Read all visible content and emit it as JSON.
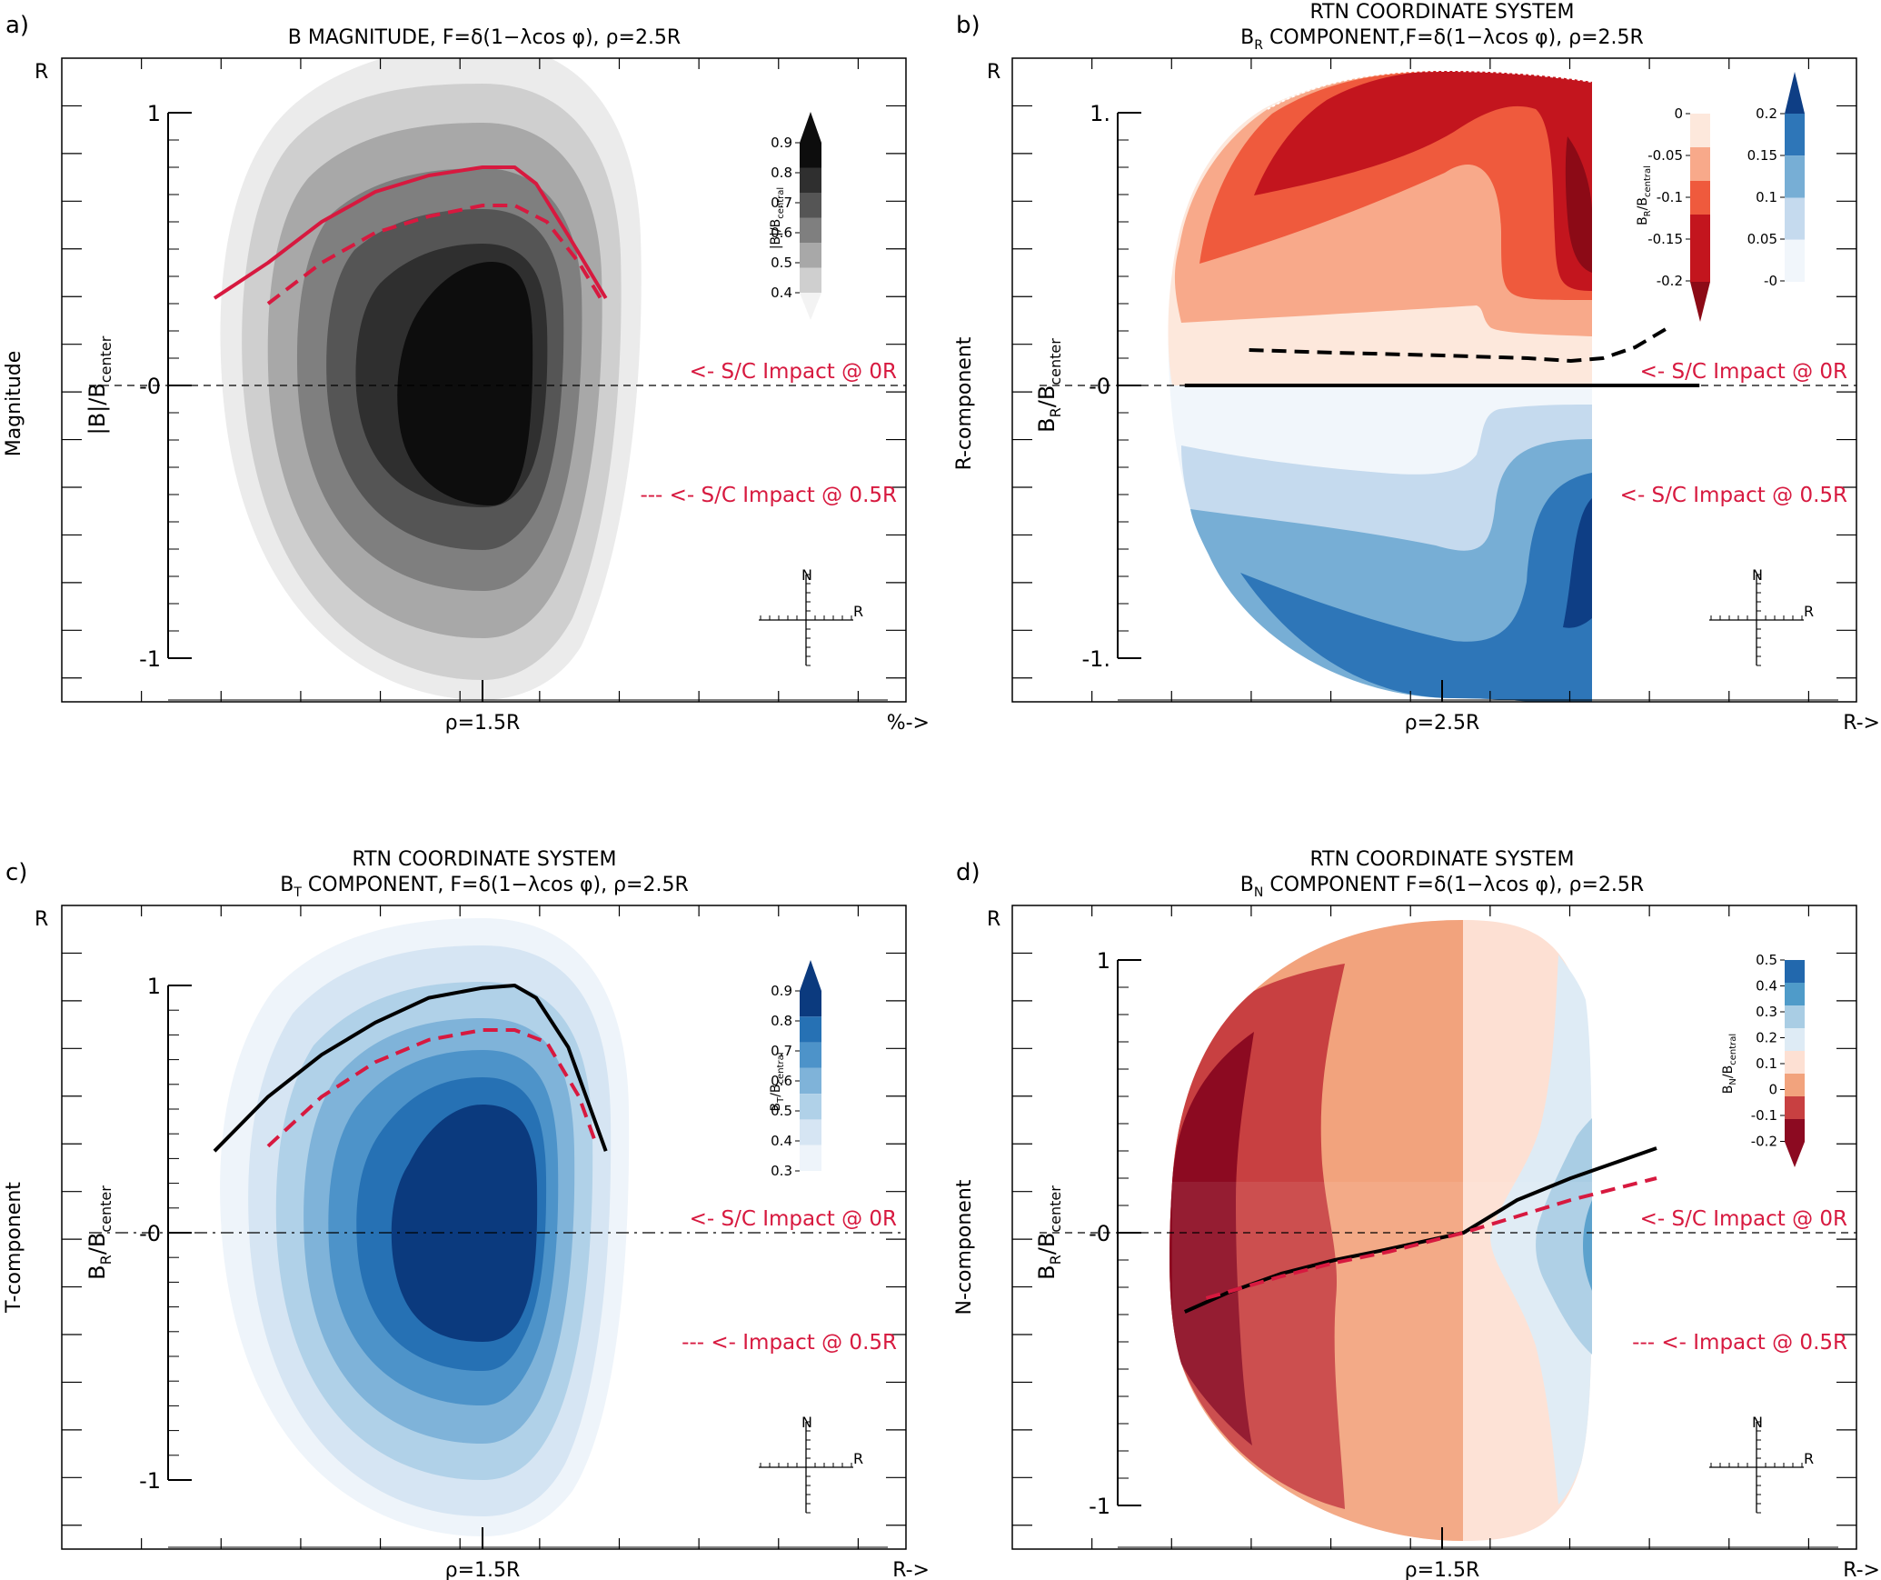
{
  "colors": {
    "accent_red": "#d7193f",
    "black": "#000000",
    "greys": [
      "#ebebeb",
      "#cfcfcf",
      "#a8a8a8",
      "#7f7f7f",
      "#555555",
      "#2f2f2f",
      "#0d0d0d"
    ],
    "blues": [
      "#eef4fa",
      "#d6e5f3",
      "#b0d1e8",
      "#7fb3d9",
      "#4d93c9",
      "#2671b4",
      "#0b3a7e"
    ],
    "reds_br": [
      "#fde8dc",
      "#f8a98a",
      "#ef5a3d",
      "#c3151e",
      "#8c0a16"
    ],
    "blues_br": [
      "#f1f6fb",
      "#c5daee",
      "#77aed5",
      "#2e76b8",
      "#0e3e85"
    ],
    "bn_scale": [
      "#8c0a21",
      "#c84041",
      "#f2a37d",
      "#fde0d3",
      "#deebf5",
      "#a9cde4",
      "#4f9bc9",
      "#2268ad",
      "#0b3e7d"
    ]
  },
  "chart_data": [
    {
      "panel": "a)",
      "type": "heatmap",
      "title": "B MAGNITUDE, F=δ(1−λcos φ), ρ=2.5R",
      "corner_label": "R",
      "outer_ylabel": "Magnitude",
      "ylabel": "|B|/B",
      "ylabel_sub": "center",
      "yticks": [
        "1",
        "-0",
        "-1"
      ],
      "ylim": [
        -1.15,
        1.15
      ],
      "xlabel_center": "ρ=1.5R",
      "xlabel_right": "%->",
      "colorbar": {
        "label": "|B|/B",
        "label_sub": "central",
        "ticks": [
          "0.9",
          "0.8",
          "0.7",
          "0.6",
          "0.5",
          "0.4"
        ],
        "levels": [
          0.4,
          0.5,
          0.6,
          0.7,
          0.8,
          0.9
        ]
      },
      "annotations": [
        "<- S/C Impact @ 0R",
        "--- <- S/C Impact @ 0.5R"
      ],
      "compass": {
        "north": "N",
        "east": "R"
      },
      "series": [
        {
          "style": "solid",
          "color": "#d7193f",
          "x": [
            -2.5,
            -2.0,
            -1.5,
            -1.0,
            -0.5,
            0,
            0.3,
            0.5,
            0.8,
            1.15
          ],
          "y": [
            0.32,
            0.45,
            0.6,
            0.71,
            0.77,
            0.8,
            0.8,
            0.74,
            0.55,
            0.32
          ]
        },
        {
          "style": "dashed",
          "color": "#d7193f",
          "x": [
            -2.0,
            -1.5,
            -1.0,
            -0.5,
            0,
            0.3,
            0.6,
            0.9,
            1.1
          ],
          "y": [
            0.3,
            0.45,
            0.56,
            0.62,
            0.66,
            0.66,
            0.6,
            0.45,
            0.32
          ]
        }
      ]
    },
    {
      "panel": "b)",
      "type": "heatmap",
      "title": "RTN COORDINATE SYSTEM",
      "subtitle_pre": "B",
      "subtitle_sub": "R",
      "subtitle_post": " COMPONENT,F=δ(1−λcos φ), ρ=2.5R",
      "corner_label": "R",
      "outer_ylabel": "R-component",
      "ylabel": "B",
      "ylabel_sub": "R",
      "ylabel_post": "/B",
      "ylabel_sub2": "center",
      "yticks": [
        "1.",
        "-0",
        "-1."
      ],
      "ylim": [
        -1.15,
        1.15
      ],
      "xlabel_center": "ρ=2.5R",
      "xlabel_right": "R->",
      "colorbar_neg": {
        "ticks": [
          "0",
          "-0.05",
          "-0.1",
          "-0.15",
          "-0.2"
        ],
        "levels": [
          0,
          -0.05,
          -0.1,
          -0.15,
          -0.2
        ]
      },
      "colorbar_pos": {
        "ticks": [
          "0.2",
          "0.15",
          "0.1",
          "0.05",
          "-0"
        ],
        "levels": [
          0.2,
          0.15,
          0.1,
          0.05,
          0
        ]
      },
      "colorbar_label": "B",
      "colorbar_label_sub": "R",
      "colorbar_label_post": "/B",
      "colorbar_label_sub2": "central",
      "annotations": [
        "<- S/C Impact @ 0R",
        "<- S/C Impact @ 0.5R"
      ],
      "compass": {
        "north": "N",
        "east": "R"
      },
      "series": [
        {
          "style": "solid",
          "color": "#000000",
          "x": [
            -2.4,
            2.4
          ],
          "y": [
            0,
            0
          ]
        },
        {
          "style": "dashed",
          "color": "#000000",
          "x": [
            -1.8,
            -1.0,
            0,
            0.8,
            1.2,
            1.5,
            1.8,
            2.1
          ],
          "y": [
            0.13,
            0.12,
            0.11,
            0.1,
            0.09,
            0.1,
            0.14,
            0.21
          ]
        }
      ]
    },
    {
      "panel": "c)",
      "type": "heatmap",
      "title": "RTN COORDINATE SYSTEM",
      "subtitle_pre": "B",
      "subtitle_sub": "T",
      "subtitle_post": " COMPONENT, F=δ(1−λcos φ), ρ=2.5R",
      "corner_label": "R",
      "outer_ylabel": "T-component",
      "ylabel": "B",
      "ylabel_sub": "R",
      "ylabel_post": "/B",
      "ylabel_sub2": "center",
      "yticks": [
        "1",
        "-0",
        "-1"
      ],
      "ylim": [
        -1.2,
        1.1
      ],
      "xlabel_center": "ρ=1.5R",
      "xlabel_right": "R->",
      "colorbar": {
        "label": "B",
        "label_sub": "T",
        "label_post": "/B",
        "label_sub2": "central",
        "ticks": [
          "0.9",
          "0.8",
          "0.7",
          "0.6",
          "0.5",
          "0.4",
          "0.3"
        ],
        "levels": [
          0.3,
          0.4,
          0.5,
          0.6,
          0.7,
          0.8,
          0.9
        ]
      },
      "annotations": [
        "<- S/C Impact @ 0R",
        "--- <- Impact @ 0.5R"
      ],
      "compass": {
        "north": "N",
        "east": "R"
      },
      "series": [
        {
          "style": "solid",
          "color": "#000000",
          "x": [
            -2.5,
            -2.0,
            -1.5,
            -1.0,
            -0.5,
            0,
            0.3,
            0.5,
            0.8,
            1.15
          ],
          "y": [
            0.33,
            0.55,
            0.72,
            0.85,
            0.95,
            0.99,
            1.0,
            0.95,
            0.75,
            0.33
          ]
        },
        {
          "style": "dashed",
          "color": "#d7193f",
          "x": [
            -2.0,
            -1.5,
            -1.0,
            -0.5,
            0,
            0.3,
            0.6,
            0.9,
            1.05
          ],
          "y": [
            0.35,
            0.55,
            0.69,
            0.78,
            0.82,
            0.82,
            0.77,
            0.55,
            0.37
          ]
        }
      ]
    },
    {
      "panel": "d)",
      "type": "heatmap",
      "title": "RTN COORDINATE SYSTEM",
      "subtitle_pre": "B",
      "subtitle_sub": "N",
      "subtitle_post": " COMPONENT F=δ(1−λcos φ), ρ=2.5R",
      "corner_label": "R",
      "outer_ylabel": "N-component",
      "ylabel": "B",
      "ylabel_sub": "R",
      "ylabel_post": "/B",
      "ylabel_sub2": "center",
      "yticks": [
        "1",
        "-0",
        "-1"
      ],
      "ylim": [
        -1.15,
        1.15
      ],
      "xlabel_center": "ρ=1.5R",
      "xlabel_right": "R->",
      "colorbar": {
        "label": "B",
        "label_sub": "N",
        "label_post": "/B",
        "label_sub2": "central",
        "ticks": [
          "0.5",
          "0.4",
          "0.3",
          "0.2",
          "0.1",
          "0",
          "-0.1",
          "-0.2"
        ],
        "levels": [
          -0.2,
          -0.1,
          0,
          0.1,
          0.2,
          0.3,
          0.4,
          0.5
        ]
      },
      "annotations": [
        "<- S/C Impact @ 0R",
        "--- <- Impact @ 0.5R"
      ],
      "compass": {
        "north": "N",
        "east": "R"
      },
      "series": [
        {
          "style": "solid",
          "color": "#000000",
          "x": [
            -2.4,
            -2.0,
            -1.5,
            -1.0,
            -0.5,
            0.2,
            0.7,
            1.2,
            2.0
          ],
          "y": [
            -0.29,
            -0.22,
            -0.15,
            -0.1,
            -0.06,
            0,
            0.12,
            0.2,
            0.31
          ]
        },
        {
          "style": "dashed",
          "color": "#d7193f",
          "x": [
            -2.2,
            -1.5,
            -1.0,
            -0.5,
            0.2,
            0.7,
            1.2,
            2.0
          ],
          "y": [
            -0.24,
            -0.16,
            -0.11,
            -0.07,
            0,
            0.06,
            0.12,
            0.2
          ]
        }
      ]
    }
  ]
}
